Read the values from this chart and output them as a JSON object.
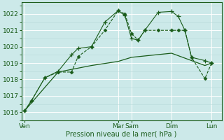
{
  "bg_color": "#cce9e9",
  "grid_color_major": "#ffffff",
  "grid_color_minor": "#b8dada",
  "line_color": "#1a5c1a",
  "xlabel": "Pression niveau de la mer( hPa )",
  "ylim": [
    1015.5,
    1022.7
  ],
  "yticks": [
    1016,
    1017,
    1018,
    1019,
    1020,
    1021,
    1022
  ],
  "day_labels": [
    "Ven",
    "Mar",
    "Sam",
    "Dim",
    "Lun"
  ],
  "day_x": [
    0,
    14,
    16,
    22,
    28
  ],
  "xlim": [
    -0.5,
    29.5
  ],
  "num_minor_x": 1,
  "series0_x": [
    0,
    1,
    3,
    5,
    7,
    8,
    10,
    12,
    14,
    15,
    16,
    17,
    18,
    20,
    22,
    23,
    24,
    25,
    27,
    28
  ],
  "series0_y": [
    1016.1,
    1016.7,
    1018.1,
    1018.5,
    1019.5,
    1019.9,
    1020.0,
    1021.5,
    1022.2,
    1021.9,
    1020.5,
    1020.4,
    1021.0,
    1022.1,
    1022.15,
    1021.85,
    1021.0,
    1019.35,
    1019.15,
    1019.0
  ],
  "series1_x": [
    0,
    1,
    3,
    5,
    7,
    8,
    10,
    12,
    14,
    15,
    16,
    17,
    18,
    20,
    22,
    23,
    24,
    25,
    27,
    28
  ],
  "series1_y": [
    1016.1,
    1016.7,
    1018.1,
    1018.45,
    1018.45,
    1019.4,
    1020.0,
    1021.0,
    1022.2,
    1022.0,
    1020.8,
    1020.4,
    1021.0,
    1021.0,
    1021.0,
    1021.0,
    1021.0,
    1019.35,
    1018.05,
    1019.0
  ],
  "series2_x": [
    0,
    5,
    10,
    14,
    16,
    22,
    27,
    28
  ],
  "series2_y": [
    1016.1,
    1018.45,
    1018.85,
    1019.1,
    1019.35,
    1019.6,
    1018.85,
    1019.0
  ]
}
